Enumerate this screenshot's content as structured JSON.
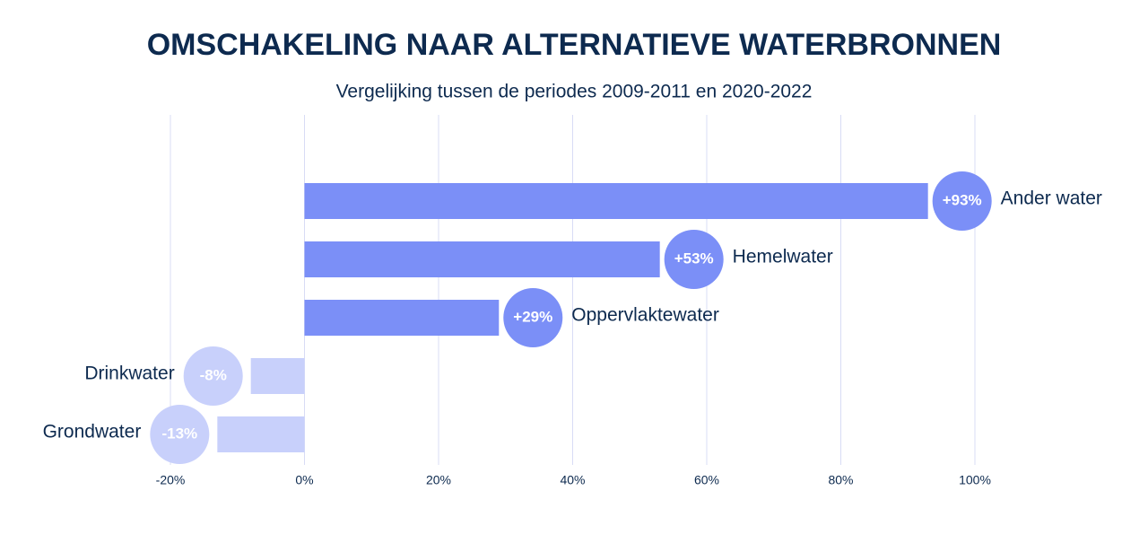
{
  "chart_data": {
    "type": "bar",
    "orientation": "horizontal",
    "title": "OMSCHAKELING NAAR ALTERNATIEVE WATERBRONNEN",
    "subtitle": "Vergelijking tussen de periodes 2009-2011 en 2020-2022",
    "categories": [
      "Ander water",
      "Hemelwater",
      "Oppervlaktewater",
      "Drinkwater",
      "Grondwater"
    ],
    "values": [
      93,
      53,
      29,
      -8,
      -13
    ],
    "value_labels": [
      "+93%",
      "+53%",
      "+29%",
      "-8%",
      "-13%"
    ],
    "positive_color": "#7b8ff7",
    "negative_color": "#c8d0fb",
    "xlim": [
      -20,
      100
    ],
    "xticks": [
      {
        "value": -20,
        "label": "-20%"
      },
      {
        "value": 0,
        "label": "0%"
      },
      {
        "value": 20,
        "label": "20%"
      },
      {
        "value": 40,
        "label": "40%"
      },
      {
        "value": 60,
        "label": "60%"
      },
      {
        "value": 80,
        "label": "80%"
      },
      {
        "value": 100,
        "label": "100%"
      }
    ],
    "grid": true
  }
}
